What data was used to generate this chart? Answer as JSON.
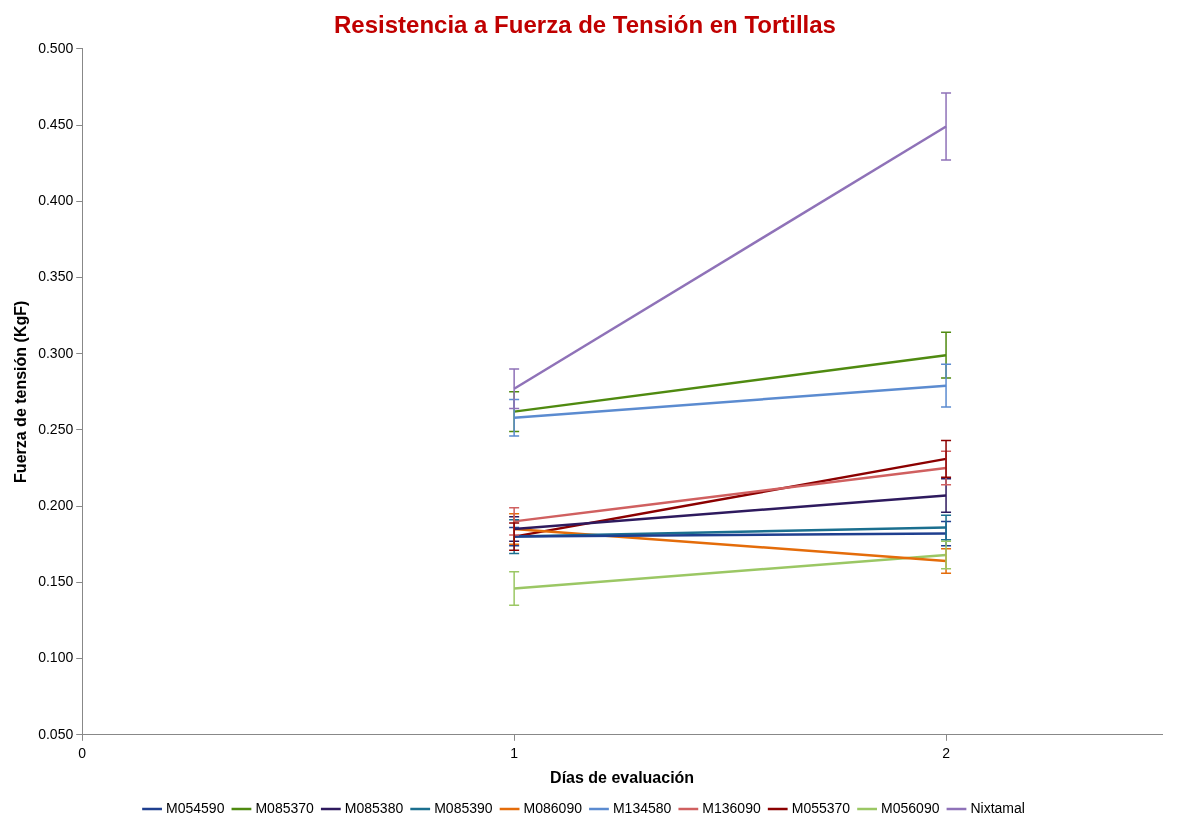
{
  "chart_data": {
    "type": "line",
    "title": "Resistencia a Fuerza de Tensión en Tortillas",
    "xlabel": "Días de evaluación",
    "ylabel": "Fuerza de tensión (KgF)",
    "x": [
      1,
      2
    ],
    "xlim": [
      0,
      2.5
    ],
    "xticks": [
      0,
      1,
      2
    ],
    "ylim": [
      0.05,
      0.5
    ],
    "yticks": [
      {
        "value": 0.05,
        "label": "0.050"
      },
      {
        "value": 0.1,
        "label": "0.100"
      },
      {
        "value": 0.15,
        "label": "0.150"
      },
      {
        "value": 0.2,
        "label": "0.200"
      },
      {
        "value": 0.25,
        "label": "0.250"
      },
      {
        "value": 0.3,
        "label": "0.300"
      },
      {
        "value": 0.35,
        "label": "0.350"
      },
      {
        "value": 0.4,
        "label": "0.400"
      },
      {
        "value": 0.45,
        "label": "0.450"
      },
      {
        "value": 0.5,
        "label": "0.500"
      }
    ],
    "grid": false,
    "legend": "bottom",
    "marker": "none",
    "line_style": "solid",
    "series": [
      {
        "name": "M054590",
        "color": "#1f3f8f",
        "values": [
          0.18,
          0.182
        ],
        "errors": [
          0.006,
          0.008
        ]
      },
      {
        "name": "M085370",
        "color": "#4f8a10",
        "values": [
          0.262,
          0.299
        ],
        "errors": [
          0.013,
          0.015
        ]
      },
      {
        "name": "M085380",
        "color": "#2e1a5e",
        "values": [
          0.185,
          0.207
        ],
        "errors": [
          0.008,
          0.011
        ]
      },
      {
        "name": "M085390",
        "color": "#1b6f8f",
        "values": [
          0.18,
          0.186
        ],
        "errors": [
          0.011,
          0.008
        ]
      },
      {
        "name": "M086090",
        "color": "#e46c0a",
        "values": [
          0.185,
          0.164
        ],
        "errors": [
          0.01,
          0.008
        ]
      },
      {
        "name": "M134580",
        "color": "#5b8bd0",
        "values": [
          0.258,
          0.279
        ],
        "errors": [
          0.012,
          0.014
        ]
      },
      {
        "name": "M136090",
        "color": "#d06060",
        "values": [
          0.19,
          0.225
        ],
        "errors": [
          0.009,
          0.011
        ]
      },
      {
        "name": "M055370",
        "color": "#8b0000",
        "values": [
          0.18,
          0.231
        ],
        "errors": [
          0.009,
          0.012
        ]
      },
      {
        "name": "M056090",
        "color": "#9bc764",
        "values": [
          0.146,
          0.168
        ],
        "errors": [
          0.011,
          0.009
        ]
      },
      {
        "name": "Nixtamal",
        "color": "#8f72b8",
        "values": [
          0.277,
          0.449
        ],
        "errors": [
          0.013,
          0.022
        ]
      }
    ]
  }
}
